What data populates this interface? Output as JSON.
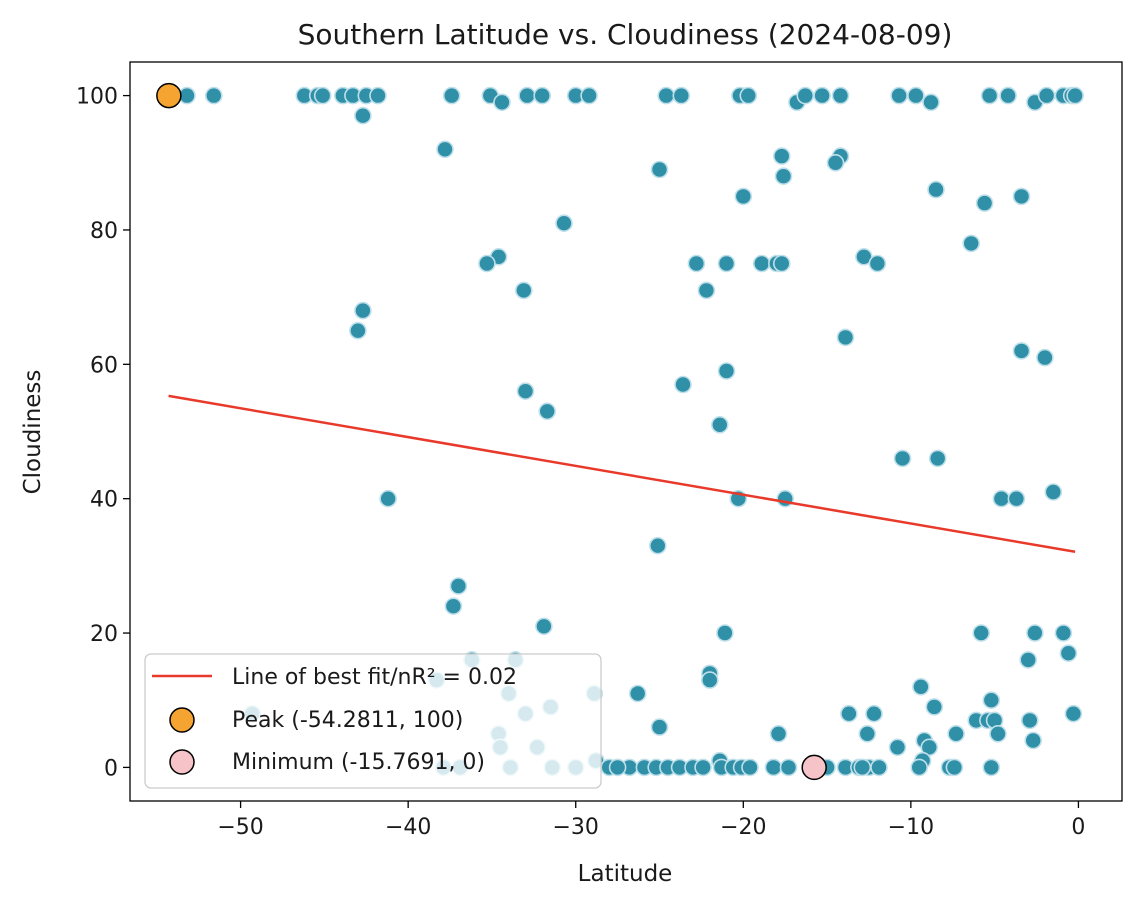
{
  "chart_data": {
    "type": "scatter",
    "title": "Southern Latitude vs. Cloudiness (2024-08-09)",
    "xlabel": "Latitude",
    "ylabel": "Cloudiness",
    "xlim": [
      -56.6,
      2.6
    ],
    "ylim": [
      -5,
      105
    ],
    "xticks": [
      -50,
      -40,
      -30,
      -20,
      -10,
      0
    ],
    "yticks": [
      0,
      20,
      40,
      60,
      80,
      100
    ],
    "xtick_labels": [
      "−50",
      "−40",
      "−30",
      "−20",
      "−10",
      "0"
    ],
    "ytick_labels": [
      "0",
      "20",
      "40",
      "60",
      "80",
      "100"
    ],
    "grid": false,
    "legend_position": "lower-left",
    "colors": {
      "points": "#3090a8",
      "point_edge": "#bfe0ea",
      "fit_line": "#e8392a",
      "peak": "#f5a331",
      "minimum": "#f5c3c8"
    },
    "series": [
      {
        "name": "Cities",
        "points": [
          [
            -53.2,
            100
          ],
          [
            -51.6,
            100
          ],
          [
            -46.2,
            100
          ],
          [
            -45.4,
            100
          ],
          [
            -45.1,
            100
          ],
          [
            -43.9,
            100
          ],
          [
            -43.3,
            100
          ],
          [
            -42.5,
            100
          ],
          [
            -41.8,
            100
          ],
          [
            -42.7,
            97
          ],
          [
            -37.4,
            100
          ],
          [
            -35.1,
            100
          ],
          [
            -34.4,
            99
          ],
          [
            -32.9,
            100
          ],
          [
            -32.0,
            100
          ],
          [
            -30.0,
            100
          ],
          [
            -29.2,
            100
          ],
          [
            -24.6,
            100
          ],
          [
            -23.7,
            100
          ],
          [
            -20.2,
            100
          ],
          [
            -19.7,
            100
          ],
          [
            -16.8,
            99
          ],
          [
            -16.3,
            100
          ],
          [
            -15.3,
            100
          ],
          [
            -14.2,
            100
          ],
          [
            -10.7,
            100
          ],
          [
            -9.7,
            100
          ],
          [
            -8.8,
            99
          ],
          [
            -5.3,
            100
          ],
          [
            -4.2,
            100
          ],
          [
            -2.6,
            99
          ],
          [
            -1.9,
            100
          ],
          [
            -0.9,
            100
          ],
          [
            -0.4,
            100
          ],
          [
            -0.2,
            100
          ],
          [
            -37.8,
            92
          ],
          [
            -17.7,
            91
          ],
          [
            -14.2,
            91
          ],
          [
            -14.5,
            90
          ],
          [
            -25.0,
            89
          ],
          [
            -17.6,
            88
          ],
          [
            -8.5,
            86
          ],
          [
            -20.0,
            85
          ],
          [
            -3.4,
            85
          ],
          [
            -5.6,
            84
          ],
          [
            -30.7,
            81
          ],
          [
            -6.4,
            78
          ],
          [
            -34.6,
            76
          ],
          [
            -12.8,
            76
          ],
          [
            -35.3,
            75
          ],
          [
            -22.8,
            75
          ],
          [
            -21.0,
            75
          ],
          [
            -18.9,
            75
          ],
          [
            -18.0,
            75
          ],
          [
            -17.7,
            75
          ],
          [
            -12.0,
            75
          ],
          [
            -33.1,
            71
          ],
          [
            -22.2,
            71
          ],
          [
            -42.7,
            68
          ],
          [
            -43.0,
            65
          ],
          [
            -13.9,
            64
          ],
          [
            -3.4,
            62
          ],
          [
            -2.0,
            61
          ],
          [
            -21.0,
            59
          ],
          [
            -23.6,
            57
          ],
          [
            -33.0,
            56
          ],
          [
            -31.7,
            53
          ],
          [
            -21.4,
            51
          ],
          [
            -10.5,
            46
          ],
          [
            -8.4,
            46
          ],
          [
            -41.2,
            40
          ],
          [
            -20.3,
            40
          ],
          [
            -17.5,
            40
          ],
          [
            -4.6,
            40
          ],
          [
            -3.7,
            40
          ],
          [
            -1.5,
            41
          ],
          [
            -25.1,
            33
          ],
          [
            -37.0,
            27
          ],
          [
            -37.3,
            24
          ],
          [
            -31.9,
            21
          ],
          [
            -21.1,
            20
          ],
          [
            -5.8,
            20
          ],
          [
            -2.6,
            20
          ],
          [
            -0.9,
            20
          ],
          [
            -0.6,
            17
          ],
          [
            -3.0,
            16
          ],
          [
            -36.2,
            16
          ],
          [
            -33.6,
            16
          ],
          [
            -22.0,
            14
          ],
          [
            -22.0,
            13
          ],
          [
            -26.3,
            11
          ],
          [
            -28.9,
            11
          ],
          [
            -9.4,
            12
          ],
          [
            -5.2,
            10
          ],
          [
            -8.6,
            9
          ],
          [
            -13.7,
            8
          ],
          [
            -12.2,
            8
          ],
          [
            -0.3,
            8
          ],
          [
            -31.5,
            9
          ],
          [
            -33.0,
            8
          ],
          [
            -49.3,
            8
          ],
          [
            -6.1,
            7
          ],
          [
            -5.4,
            7
          ],
          [
            -5.0,
            7
          ],
          [
            -2.9,
            7
          ],
          [
            -38.3,
            13
          ],
          [
            -34.0,
            11
          ],
          [
            -34.6,
            5
          ],
          [
            -34.5,
            3
          ],
          [
            -32.3,
            3
          ],
          [
            -25.0,
            6
          ],
          [
            -17.9,
            5
          ],
          [
            -12.6,
            5
          ],
          [
            -7.3,
            5
          ],
          [
            -4.8,
            5
          ],
          [
            -2.7,
            4
          ],
          [
            -9.2,
            4
          ],
          [
            -8.9,
            3
          ],
          [
            -10.8,
            3
          ],
          [
            -21.4,
            1
          ],
          [
            -9.3,
            1
          ],
          [
            -28.8,
            1
          ],
          [
            -37.9,
            0
          ],
          [
            -36.9,
            0
          ],
          [
            -33.9,
            0
          ],
          [
            -31.4,
            0
          ],
          [
            -30.0,
            0
          ],
          [
            -28.0,
            0
          ],
          [
            -26.8,
            0
          ],
          [
            -25.9,
            0
          ],
          [
            -25.2,
            0
          ],
          [
            -24.5,
            0
          ],
          [
            -23.8,
            0
          ],
          [
            -23.0,
            0
          ],
          [
            -21.3,
            0
          ],
          [
            -20.6,
            0
          ],
          [
            -20.1,
            0
          ],
          [
            -18.2,
            0
          ],
          [
            -17.3,
            0
          ],
          [
            -15.0,
            0
          ],
          [
            -13.9,
            0
          ],
          [
            -13.1,
            0
          ],
          [
            -12.5,
            0
          ],
          [
            -11.9,
            0
          ],
          [
            -9.5,
            0
          ],
          [
            -7.7,
            0
          ],
          [
            -7.4,
            0
          ],
          [
            -5.2,
            0
          ],
          [
            -27.5,
            0
          ],
          [
            -22.4,
            0
          ],
          [
            -19.6,
            0
          ],
          [
            -12.9,
            0
          ]
        ]
      }
    ],
    "fit_line": {
      "name": "Line of best fit/nR² = 0.02",
      "x": [
        -54.3,
        -0.2
      ],
      "y": [
        55.3,
        32.1
      ]
    },
    "highlights": [
      {
        "name": "Peak (-54.2811, 100)",
        "x": -54.2811,
        "y": 100
      },
      {
        "name": "Minimum (-15.7691, 0)",
        "x": -15.7691,
        "y": 0
      }
    ]
  }
}
